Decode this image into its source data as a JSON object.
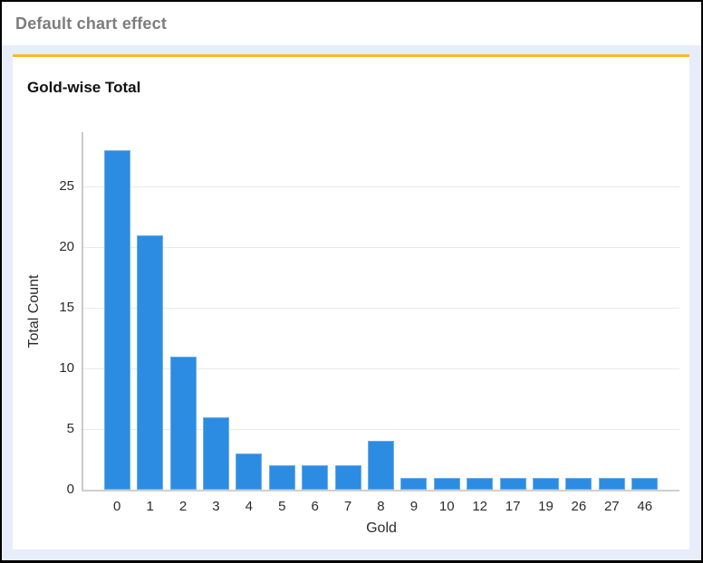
{
  "header": {
    "title": "Default chart effect"
  },
  "card": {
    "title": "Gold-wise Total"
  },
  "chart_data": {
    "type": "bar",
    "title": "Gold-wise Total",
    "categories": [
      "0",
      "1",
      "2",
      "3",
      "4",
      "5",
      "6",
      "7",
      "8",
      "9",
      "10",
      "12",
      "17",
      "19",
      "26",
      "27",
      "46"
    ],
    "values": [
      28,
      21,
      11,
      6,
      3,
      2,
      2,
      2,
      4,
      1,
      1,
      1,
      1,
      1,
      1,
      1,
      1
    ],
    "xlabel": "Gold",
    "ylabel": "Total Count",
    "ylim": [
      0,
      29.5
    ],
    "yticks": [
      0,
      5,
      10,
      15,
      20,
      25
    ],
    "grid": true,
    "legend": false,
    "bar_color": "#2b8ce2"
  },
  "colors": {
    "accent_orange": "#fcb826",
    "page_background": "#e8edfb",
    "bar_blue": "#2b8ce2",
    "header_text": "#7d7d7d",
    "frame_border": "#000000"
  }
}
